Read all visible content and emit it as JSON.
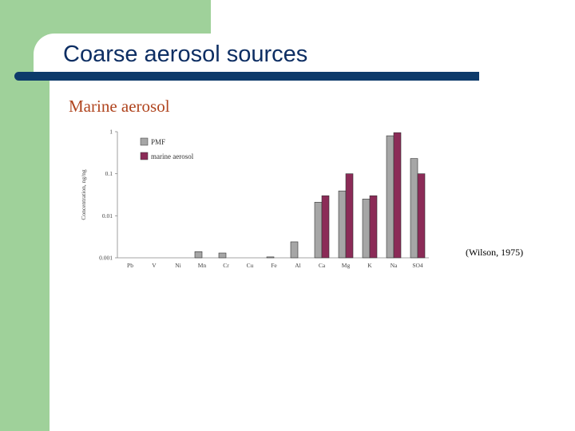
{
  "slide": {
    "title": "Coarse aerosol sources",
    "subtitle": "Marine aerosol",
    "citation": "(Wilson, 1975)",
    "colors": {
      "green": "#9fd19a",
      "navy": "#0d3a6a",
      "title": "#0d2e63",
      "subtitle": "#b0451f"
    }
  },
  "chart_data": {
    "type": "bar",
    "ylabel": "Concentration, ng/ng",
    "yscale": "log",
    "ylim": [
      0.001,
      1
    ],
    "yticks": [
      "1",
      "0.1",
      "0.01",
      "0.001"
    ],
    "categories": [
      "Pb",
      "V",
      "Ni",
      "Mn",
      "Cr",
      "Cu",
      "Fe",
      "Al",
      "Ca",
      "Mg",
      "K",
      "Na",
      "SO4"
    ],
    "series": [
      {
        "name": "PMF",
        "color": "#a6a6a6",
        "values": [
          null,
          null,
          null,
          0.0014,
          0.0013,
          null,
          0.00105,
          0.0024,
          0.021,
          0.039,
          0.025,
          0.8,
          0.23
        ]
      },
      {
        "name": "marine aerosol",
        "color": "#8b2b57",
        "values": [
          null,
          null,
          null,
          null,
          null,
          null,
          null,
          null,
          0.03,
          0.1,
          0.03,
          0.95,
          0.1
        ]
      }
    ],
    "legend_position": "top-left"
  }
}
